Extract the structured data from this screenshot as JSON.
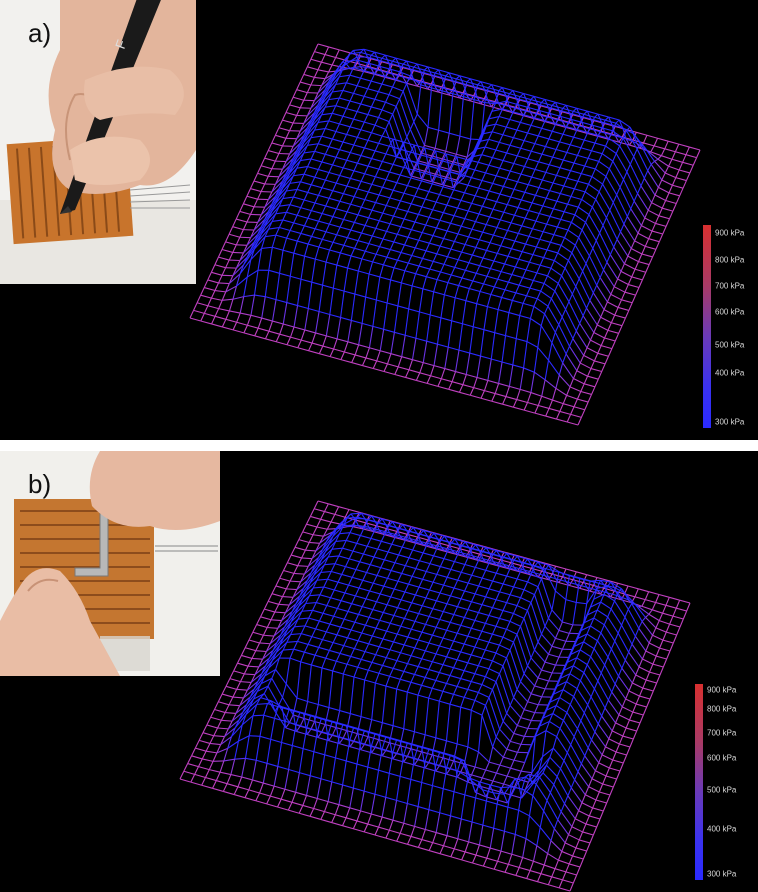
{
  "panels": [
    {
      "label": "a)"
    },
    {
      "label": "b)"
    }
  ],
  "colorscale": {
    "labels": [
      "900 kPa",
      "800 kPa",
      "700 kPa",
      "600 kPa",
      "500 kPa",
      "400 kPa",
      "300 kPa"
    ],
    "colors": {
      "high": "#d83030",
      "mid": "#8a3ca0",
      "low": "#2a2aff",
      "base": "#c040c0"
    }
  }
}
